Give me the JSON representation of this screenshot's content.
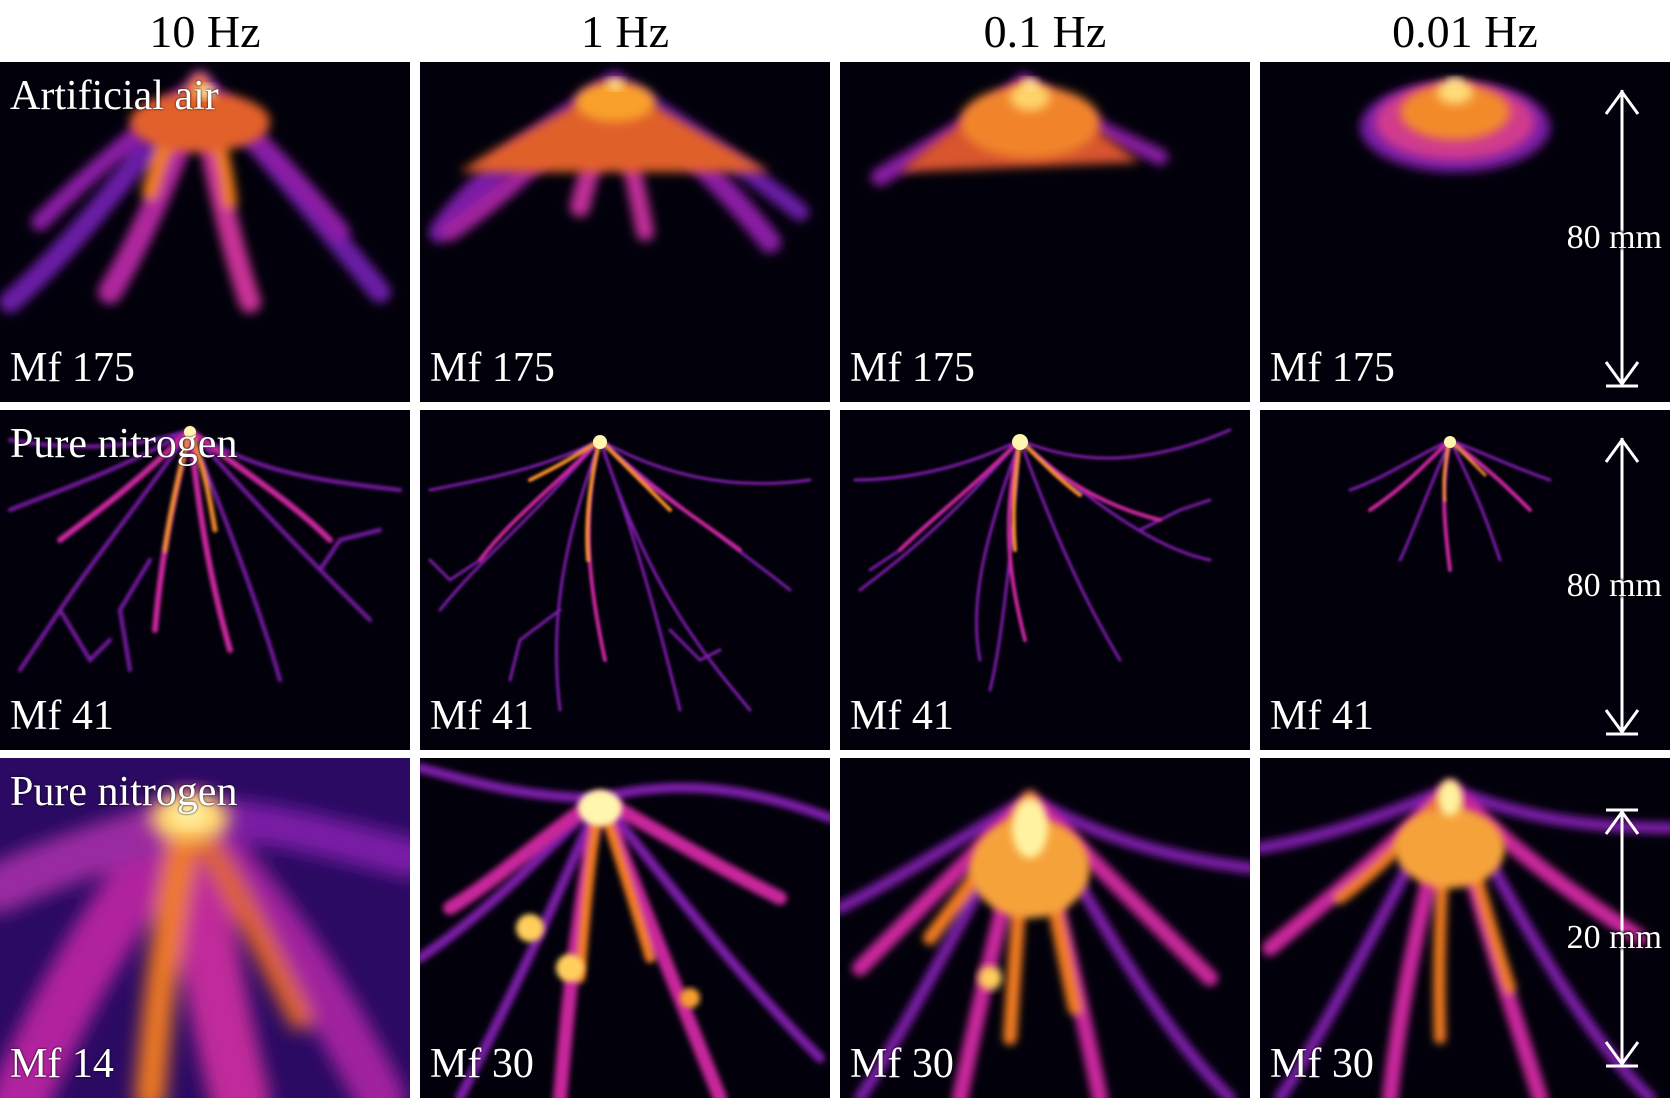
{
  "column_headers": [
    "10 Hz",
    "1 Hz",
    "0.1 Hz",
    "0.01 Hz"
  ],
  "rows": [
    {
      "gas_label": "Artificial air",
      "scale_label": "80 mm",
      "magnifications": [
        "Mf 175",
        "Mf 175",
        "Mf 175",
        "Mf 175"
      ]
    },
    {
      "gas_label": "Pure nitrogen",
      "scale_label": "80 mm",
      "magnifications": [
        "Mf 41",
        "Mf 41",
        "Mf 41",
        "Mf 41"
      ]
    },
    {
      "gas_label": "Pure nitrogen",
      "scale_label": "20 mm",
      "magnifications": [
        "Mf 14",
        "Mf 30",
        "Mf 30",
        "Mf 30"
      ]
    }
  ],
  "colors": {
    "background": "#02010b",
    "dim": "#3a0f7a",
    "mid": "#c8249a",
    "bright": "#f47a1a",
    "peak": "#fff6b0"
  }
}
